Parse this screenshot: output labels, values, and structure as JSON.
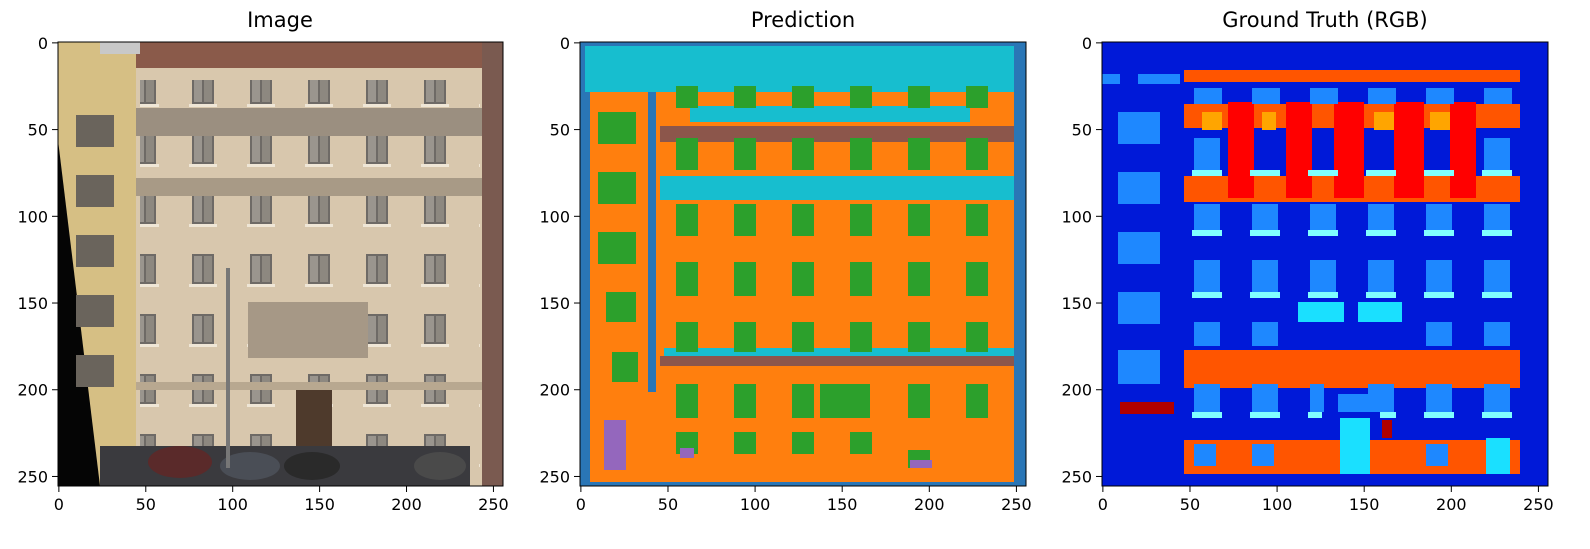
{
  "figure": {
    "panels": [
      {
        "id": "image",
        "title": "Image",
        "content": "photo-building-facade",
        "x_ticks": [
          "0",
          "50",
          "100",
          "150",
          "200",
          "250"
        ],
        "y_ticks": [
          "0",
          "50",
          "100",
          "150",
          "200",
          "250"
        ]
      },
      {
        "id": "prediction",
        "title": "Prediction",
        "content": "segmentation-map",
        "x_ticks": [
          "0",
          "50",
          "100",
          "150",
          "200",
          "250"
        ],
        "y_ticks": [
          "0",
          "50",
          "100",
          "150",
          "200",
          "250"
        ]
      },
      {
        "id": "ground-truth",
        "title": "Ground Truth (RGB)",
        "content": "segmentation-map",
        "x_ticks": [
          "0",
          "50",
          "100",
          "150",
          "200",
          "250"
        ],
        "y_ticks": [
          "0",
          "50",
          "100",
          "150",
          "200",
          "250"
        ]
      }
    ],
    "axis_range": [
      0,
      255
    ],
    "colors": {
      "prediction_background": "#2a76b6",
      "prediction_facade": "#ff7f0e",
      "prediction_window": "#2ca02c",
      "prediction_sky": "#17becf",
      "prediction_trim": "#8c564b",
      "prediction_door": "#9467bd",
      "gt_background": "#0019d8",
      "gt_window": "#1e88ff",
      "gt_sill": "#80ffff",
      "gt_cornice": "#ff5500",
      "gt_pillar": "#ff0000",
      "gt_molding": "#ffa500",
      "gt_door": "#1ae0ff",
      "gt_deco": "#b00000"
    }
  }
}
